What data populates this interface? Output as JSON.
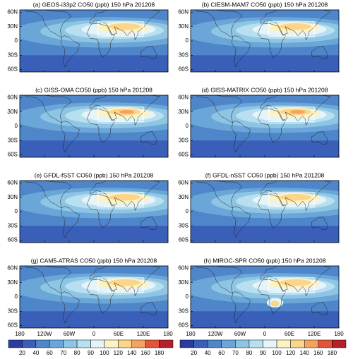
{
  "panels": [
    {
      "title": "(a) GEOS-i33p2 CO50 (ppb) 150 hPa 201208"
    },
    {
      "title": "(b) CIESM-MAM7 CO50 (ppb) 150 hPa 201208"
    },
    {
      "title": "(c) GISS-OMA CO50 (ppb) 150 hPa 201208"
    },
    {
      "title": "(d) GISS-MATRIX CO50 (ppb) 150 hPa 201208"
    },
    {
      "title": "(e) GFDL-fSST CO50 (ppb) 150 hPa 201208"
    },
    {
      "title": "(f) GFDL-nSST CO50 (ppb) 150 hPa 201208"
    },
    {
      "title": "(g) CAM5-ATRAS CO50 (ppb) 150 hPa 201208"
    },
    {
      "title": "(h) MIROC-SPR CO50 (ppb) 150 hPa 201208"
    }
  ],
  "lat_ticks": [
    "60N",
    "30N",
    "0",
    "30S",
    "60S"
  ],
  "lon_ticks": [
    "180",
    "120W",
    "60W",
    "0",
    "60E",
    "120E",
    "180"
  ],
  "colorbar": {
    "levels": [
      20,
      40,
      60,
      70,
      80,
      90,
      100,
      120,
      140,
      160,
      180
    ],
    "colors": [
      "#2b3d9c",
      "#3a5fb8",
      "#4f85c9",
      "#6aa7d8",
      "#8ec5e4",
      "#b7dff0",
      "#e4f4f8",
      "#fdf3c2",
      "#fcd48a",
      "#f5a25f",
      "#e3543c",
      "#b51f2a"
    ]
  }
}
